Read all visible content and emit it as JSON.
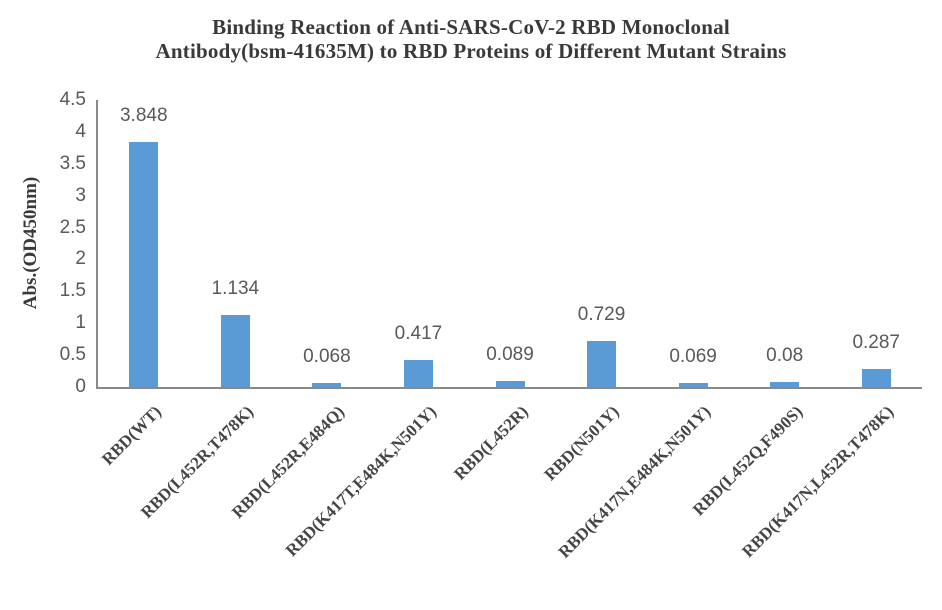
{
  "chart_data": {
    "type": "bar",
    "title_lines": [
      "Binding Reaction of Anti-SARS-CoV-2 RBD Monoclonal",
      "Antibody(bsm-41635M) to RBD Proteins of Different Mutant Strains"
    ],
    "title": "Binding Reaction of Anti-SARS-CoV-2 RBD Monoclonal Antibody(bsm-41635M) to RBD Proteins of Different Mutant Strains",
    "xlabel": "",
    "ylabel": "Abs.(OD450nm)",
    "categories": [
      "RBD(WT)",
      "RBD(L452R,T478K)",
      "RBD(L452R,E484Q)",
      "RBD(K417T,E484K,N501Y)",
      "RBD(L452R)",
      "RBD(N501Y)",
      "RBD(K417N,E484K,N501Y)",
      "RBD(L452Q,F490S)",
      "RBD(K417N,L452R,T478K)"
    ],
    "values": [
      3.848,
      1.134,
      0.068,
      0.417,
      0.089,
      0.729,
      0.069,
      0.08,
      0.287
    ],
    "value_labels": [
      "3.848",
      "1.134",
      "0.068",
      "0.417",
      "0.089",
      "0.729",
      "0.069",
      "0.08",
      "0.287"
    ],
    "ylim": [
      0,
      4.5
    ],
    "ytick_step": 0.5,
    "ytick_labels": [
      "4.5",
      "4",
      "3.5",
      "3",
      "2.5",
      "2",
      "1.5",
      "1",
      "0.5",
      "0"
    ],
    "grid": false,
    "legend": false,
    "colors": {
      "bar": "#5b9bd5",
      "axis_line": "#898989",
      "tick_label": "#595959",
      "value_label": "#595959",
      "title": "#3b3838",
      "y_axis_title": "#3b3838",
      "x_tick_label": "#454545",
      "background": "#ffffff"
    }
  }
}
